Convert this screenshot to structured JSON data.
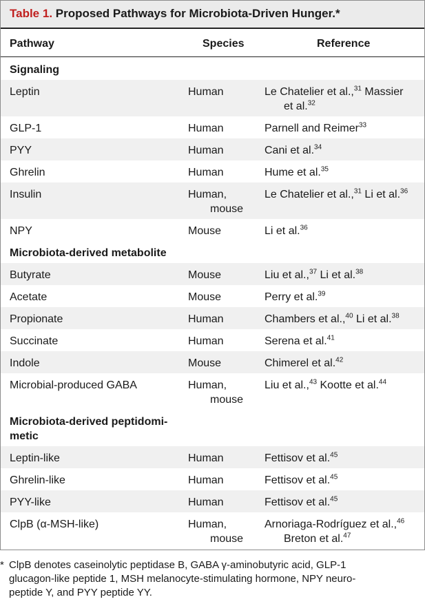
{
  "table": {
    "label": "Table 1.",
    "title": "Proposed Pathways for Microbiota-Driven Hunger.*",
    "headers": {
      "pathway": "Pathway",
      "species": "Species",
      "reference": "Reference"
    },
    "sections": {
      "signaling": "Signaling",
      "metabolite": "Microbiota-derived metabolite",
      "peptido_1": "Microbiota-derived peptidomi-",
      "peptido_2": "metic"
    },
    "rows": [
      {
        "pathway": "Leptin",
        "species": "Human",
        "ref1": "Le Chatelier et al.,",
        "sup1": "31",
        "ref1b": " Massier",
        "ref2": "et al.",
        "sup2": "32"
      },
      {
        "pathway": "GLP-1",
        "species": "Human",
        "ref1": "Parnell and Reimer",
        "sup1": "33"
      },
      {
        "pathway": "PYY",
        "species": "Human",
        "ref1": "Cani et al.",
        "sup1": "34"
      },
      {
        "pathway": "Ghrelin",
        "species": "Human",
        "ref1": "Hume et al.",
        "sup1": "35"
      },
      {
        "pathway": "Insulin",
        "species": "Human,",
        "species2": "mouse",
        "ref1": "Le Chatelier et al.,",
        "sup1": "31",
        "ref1b": " Li et al.",
        "sup1b": "36"
      },
      {
        "pathway": "NPY",
        "species": "Mouse",
        "ref1": "Li et al.",
        "sup1": "36"
      },
      {
        "pathway": "Butyrate",
        "species": "Mouse",
        "ref1": "Liu et al.,",
        "sup1": "37",
        "ref1b": " Li et al.",
        "sup1b": "38"
      },
      {
        "pathway": "Acetate",
        "species": "Mouse",
        "ref1": "Perry et al.",
        "sup1": "39"
      },
      {
        "pathway": "Propionate",
        "species": "Human",
        "ref1": "Chambers et al.,",
        "sup1": "40",
        "ref1b": " Li et al.",
        "sup1b": "38"
      },
      {
        "pathway": "Succinate",
        "species": "Human",
        "ref1": "Serena et al.",
        "sup1": "41"
      },
      {
        "pathway": "Indole",
        "species": "Mouse",
        "ref1": "Chimerel et al.",
        "sup1": "42"
      },
      {
        "pathway": "Microbial-produced GABA",
        "species": "Human,",
        "species2": "mouse",
        "ref1": "Liu et al.,",
        "sup1": "43",
        "ref1b": " Kootte et al.",
        "sup1b": "44"
      },
      {
        "pathway": "Leptin-like",
        "species": "Human",
        "ref1": "Fettisov et al.",
        "sup1": "45"
      },
      {
        "pathway": "Ghrelin-like",
        "species": "Human",
        "ref1": "Fettisov et al.",
        "sup1": "45"
      },
      {
        "pathway": "PYY-like",
        "species": "Human",
        "ref1": "Fettisov et al.",
        "sup1": "45"
      },
      {
        "pathway": "ClpB (α-MSH-like)",
        "species": "Human,",
        "species2": "mouse",
        "ref1": "Arnoriaga-Rodríguez et al.,",
        "sup1": "46",
        "ref2": "Breton et al.",
        "sup2": "47"
      }
    ]
  },
  "footnote": {
    "star": "*",
    "lines": [
      "ClpB denotes caseinolytic peptidase B, GABA γ-aminobutyric acid, GLP-1",
      "glucagon-like peptide 1, MSH melanocyte-stimulating hormone, NPY neuro-",
      "peptide Y, and PYY peptide YY."
    ]
  },
  "colors": {
    "label_red": "#c0201f",
    "header_bg": "#ebebeb",
    "shade_bg": "#f0f0f0"
  }
}
